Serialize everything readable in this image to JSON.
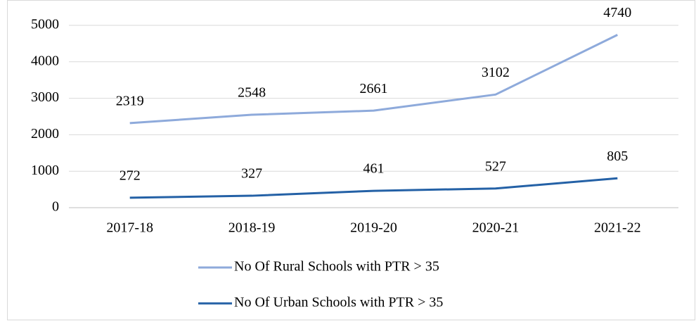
{
  "chart_data": {
    "type": "line",
    "categories": [
      "2017-18",
      "2018-19",
      "2019-20",
      "2020-21",
      "2021-22"
    ],
    "series": [
      {
        "name": "No Of Rural Schools with PTR > 35",
        "color": "#8eaadb",
        "values": [
          2319,
          2548,
          2661,
          3102,
          4740
        ]
      },
      {
        "name": "No Of Urban Schools with PTR > 35",
        "color": "#2461a6",
        "values": [
          272,
          327,
          461,
          527,
          805
        ]
      }
    ],
    "ylim": [
      0,
      5000
    ],
    "yticks": [
      0,
      1000,
      2000,
      3000,
      4000,
      5000
    ],
    "grid": true,
    "legend": "bottom",
    "data_labels": true
  }
}
